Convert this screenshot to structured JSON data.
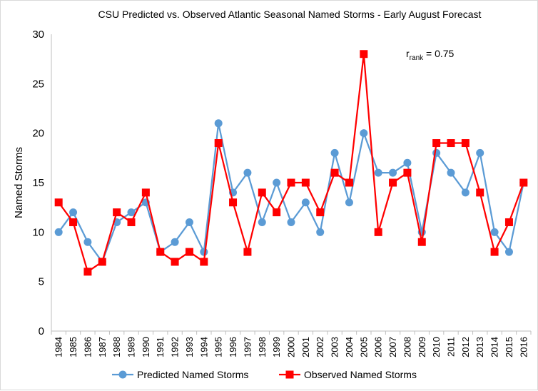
{
  "chart_data": {
    "type": "line",
    "title": "CSU Predicted vs. Observed Atlantic Seasonal Named Storms - Early August Forecast",
    "ylabel": "Named Storms",
    "xlabel": "",
    "ylim": [
      0,
      30
    ],
    "yticks": [
      0,
      5,
      10,
      15,
      20,
      25,
      30
    ],
    "grid": false,
    "legend_position": "bottom",
    "categories": [
      "1984",
      "1985",
      "1986",
      "1987",
      "1988",
      "1989",
      "1990",
      "1991",
      "1992",
      "1993",
      "1994",
      "1995",
      "1996",
      "1997",
      "1998",
      "1999",
      "2000",
      "2001",
      "2002",
      "2003",
      "2004",
      "2005",
      "2006",
      "2007",
      "2008",
      "2009",
      "2010",
      "2011",
      "2012",
      "2013",
      "2014",
      "2015",
      "2016"
    ],
    "series": [
      {
        "name": "Predicted Named Storms",
        "color": "#5b9bd5",
        "marker": "circle",
        "values": [
          10,
          12,
          9,
          7,
          11,
          12,
          13,
          8,
          9,
          11,
          8,
          21,
          14,
          16,
          11,
          15,
          11,
          13,
          10,
          18,
          13,
          20,
          16,
          16,
          17,
          10,
          18,
          16,
          14,
          18,
          10,
          8,
          15
        ]
      },
      {
        "name": "Observed Named Storms",
        "color": "#ff0000",
        "marker": "square",
        "values": [
          13,
          11,
          6,
          7,
          12,
          11,
          14,
          8,
          7,
          8,
          7,
          19,
          13,
          8,
          14,
          12,
          15,
          15,
          12,
          16,
          15,
          28,
          10,
          15,
          16,
          9,
          19,
          19,
          19,
          14,
          8,
          11,
          15
        ]
      }
    ],
    "annotation": {
      "main": "r",
      "subscript": "rank",
      "rest": " = 0.75"
    }
  }
}
